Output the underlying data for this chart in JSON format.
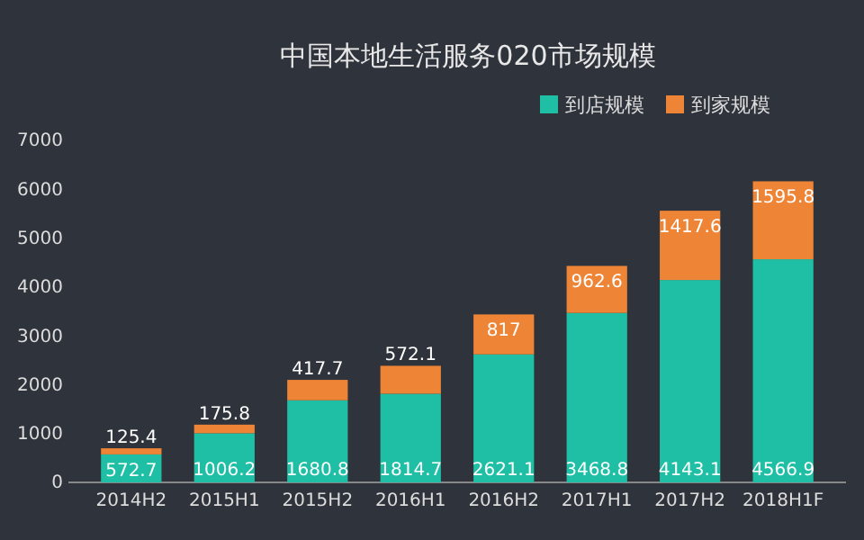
{
  "chart_data": {
    "type": "bar",
    "title": "中国本地生活服务020市场规模",
    "stacked": true,
    "data_labels": true,
    "legend": "top right",
    "grid": false,
    "categories": [
      "2014H2",
      "2015H1",
      "2015H2",
      "2016H1",
      "2016H2",
      "2017H1",
      "2017H2",
      "2018H1F"
    ],
    "series": [
      {
        "name": "到店规模",
        "color": "#1fbfa6",
        "values": [
          572.7,
          1006.2,
          1680.8,
          1814.7,
          2621.1,
          3468.8,
          4143.1,
          4566.9
        ]
      },
      {
        "name": "到家规模",
        "color": "#ee8436",
        "values": [
          125.4,
          175.8,
          417.7,
          572.1,
          817,
          962.6,
          1417.6,
          1595.8
        ]
      }
    ],
    "ylim": [
      0,
      7000
    ],
    "yticks": [
      0,
      1000,
      2000,
      3000,
      4000,
      5000,
      6000,
      7000
    ]
  }
}
